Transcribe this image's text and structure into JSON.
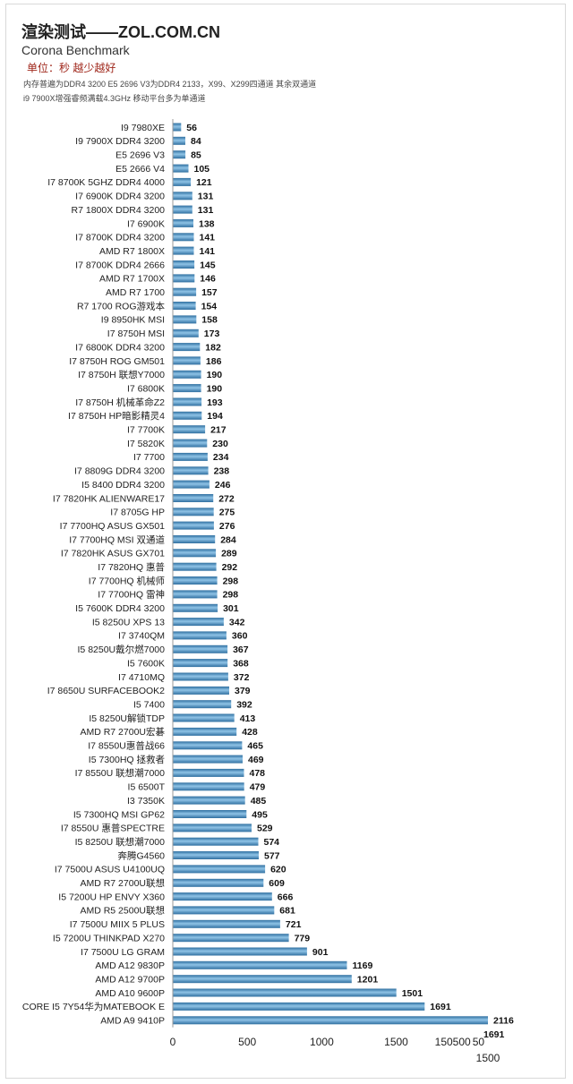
{
  "header": {
    "title": "渲染测试——ZOL.COM.CN",
    "subtitle": "Corona Benchmark",
    "unit": "单位：秒 越少越好",
    "note_line1": "内存普遍为DDR4 3200 E5 2696 V3为DDR4 2133，X99、X299四通道 其余双通道",
    "note_line2": "i9 7900X增强睿频满载4.3GHz 移动平台多为单通道"
  },
  "colors": {
    "bar_dark": "#2f6fa0",
    "bar_light": "#8fc3e6",
    "axis": "#999999"
  },
  "chart_data": {
    "type": "bar",
    "orientation": "horizontal",
    "title": "渲染测试——ZOL.COM.CN",
    "subtitle": "Corona Benchmark",
    "xlim": [
      0,
      2116
    ],
    "x_ticks": [
      "0",
      "500",
      "1000",
      "1500",
      "150500",
      "50",
      "1500"
    ],
    "categories": [
      "I9 7980XE",
      "I9 7900X DDR4 3200",
      "E5 2696 V3",
      "E5 2666 V4",
      "I7 8700K 5GHZ DDR4 4000",
      "I7 6900K DDR4 3200",
      "R7 1800X DDR4 3200",
      "I7 6900K",
      "I7 8700K DDR4 3200",
      "AMD R7 1800X",
      "I7 8700K DDR4 2666",
      "AMD R7 1700X",
      "AMD R7 1700",
      "R7 1700 ROG游戏本",
      "I9 8950HK MSI",
      "I7 8750H MSI",
      "I7 6800K DDR4 3200",
      "I7 8750H ROG GM501",
      "I7 8750H 联想Y7000",
      "I7 6800K",
      "I7 8750H 机械革命Z2",
      "I7 8750H HP暗影精灵4",
      "I7 7700K",
      "I7 5820K",
      "I7 7700",
      "I7 8809G DDR4 3200",
      "I5 8400 DDR4 3200",
      "I7 7820HK ALIENWARE17",
      "I7 8705G HP",
      "I7 7700HQ ASUS GX501",
      "I7 7700HQ MSI 双通道",
      "I7 7820HK ASUS GX701",
      "I7 7820HQ 惠普",
      "I7 7700HQ  机械师",
      "I7 7700HQ 雷神",
      "I5 7600K DDR4 3200",
      "I5 8250U XPS 13",
      "I7 3740QM",
      "I5 8250U戴尔燃7000",
      "I5 7600K",
      "I7 4710MQ",
      "I7 8650U SURFACEBOOK2",
      "I5 7400",
      "I5 8250U解锁TDP",
      "AMD R7 2700U宏碁",
      "I7 8550U惠普战66",
      "I5 7300HQ 拯救者",
      "I7 8550U 联想潮7000",
      "I5 6500T",
      "I3 7350K",
      "I5 7300HQ MSI GP62",
      "I7 8550U 惠普SPECTRE",
      "I5 8250U 联想潮7000",
      "奔腾G4560",
      "I7 7500U ASUS U4100UQ",
      "AMD R7 2700U联想",
      "I5 7200U HP ENVY X360",
      "AMD R5 2500U联想",
      "I7 7500U MIIX 5 PLUS",
      "I5 7200U THINKPAD X270",
      "I7 7500U LG GRAM",
      "AMD A12  9830P",
      "AMD A12 9700P",
      "AMD A10 9600P",
      "CORE I5 7Y54华为MATEBOOK E",
      "AMD A9  9410P"
    ],
    "values": [
      56,
      84,
      85,
      105,
      121,
      131,
      131,
      138,
      141,
      141,
      145,
      146,
      157,
      154,
      158,
      173,
      182,
      186,
      190,
      190,
      193,
      194,
      217,
      230,
      234,
      238,
      246,
      272,
      275,
      276,
      284,
      289,
      292,
      298,
      298,
      301,
      342,
      360,
      367,
      368,
      372,
      379,
      392,
      413,
      428,
      465,
      469,
      478,
      479,
      485,
      495,
      529,
      574,
      577,
      620,
      609,
      666,
      681,
      721,
      779,
      901,
      1169,
      1201,
      1501,
      1691,
      2116
    ],
    "extra_label": "1691"
  }
}
